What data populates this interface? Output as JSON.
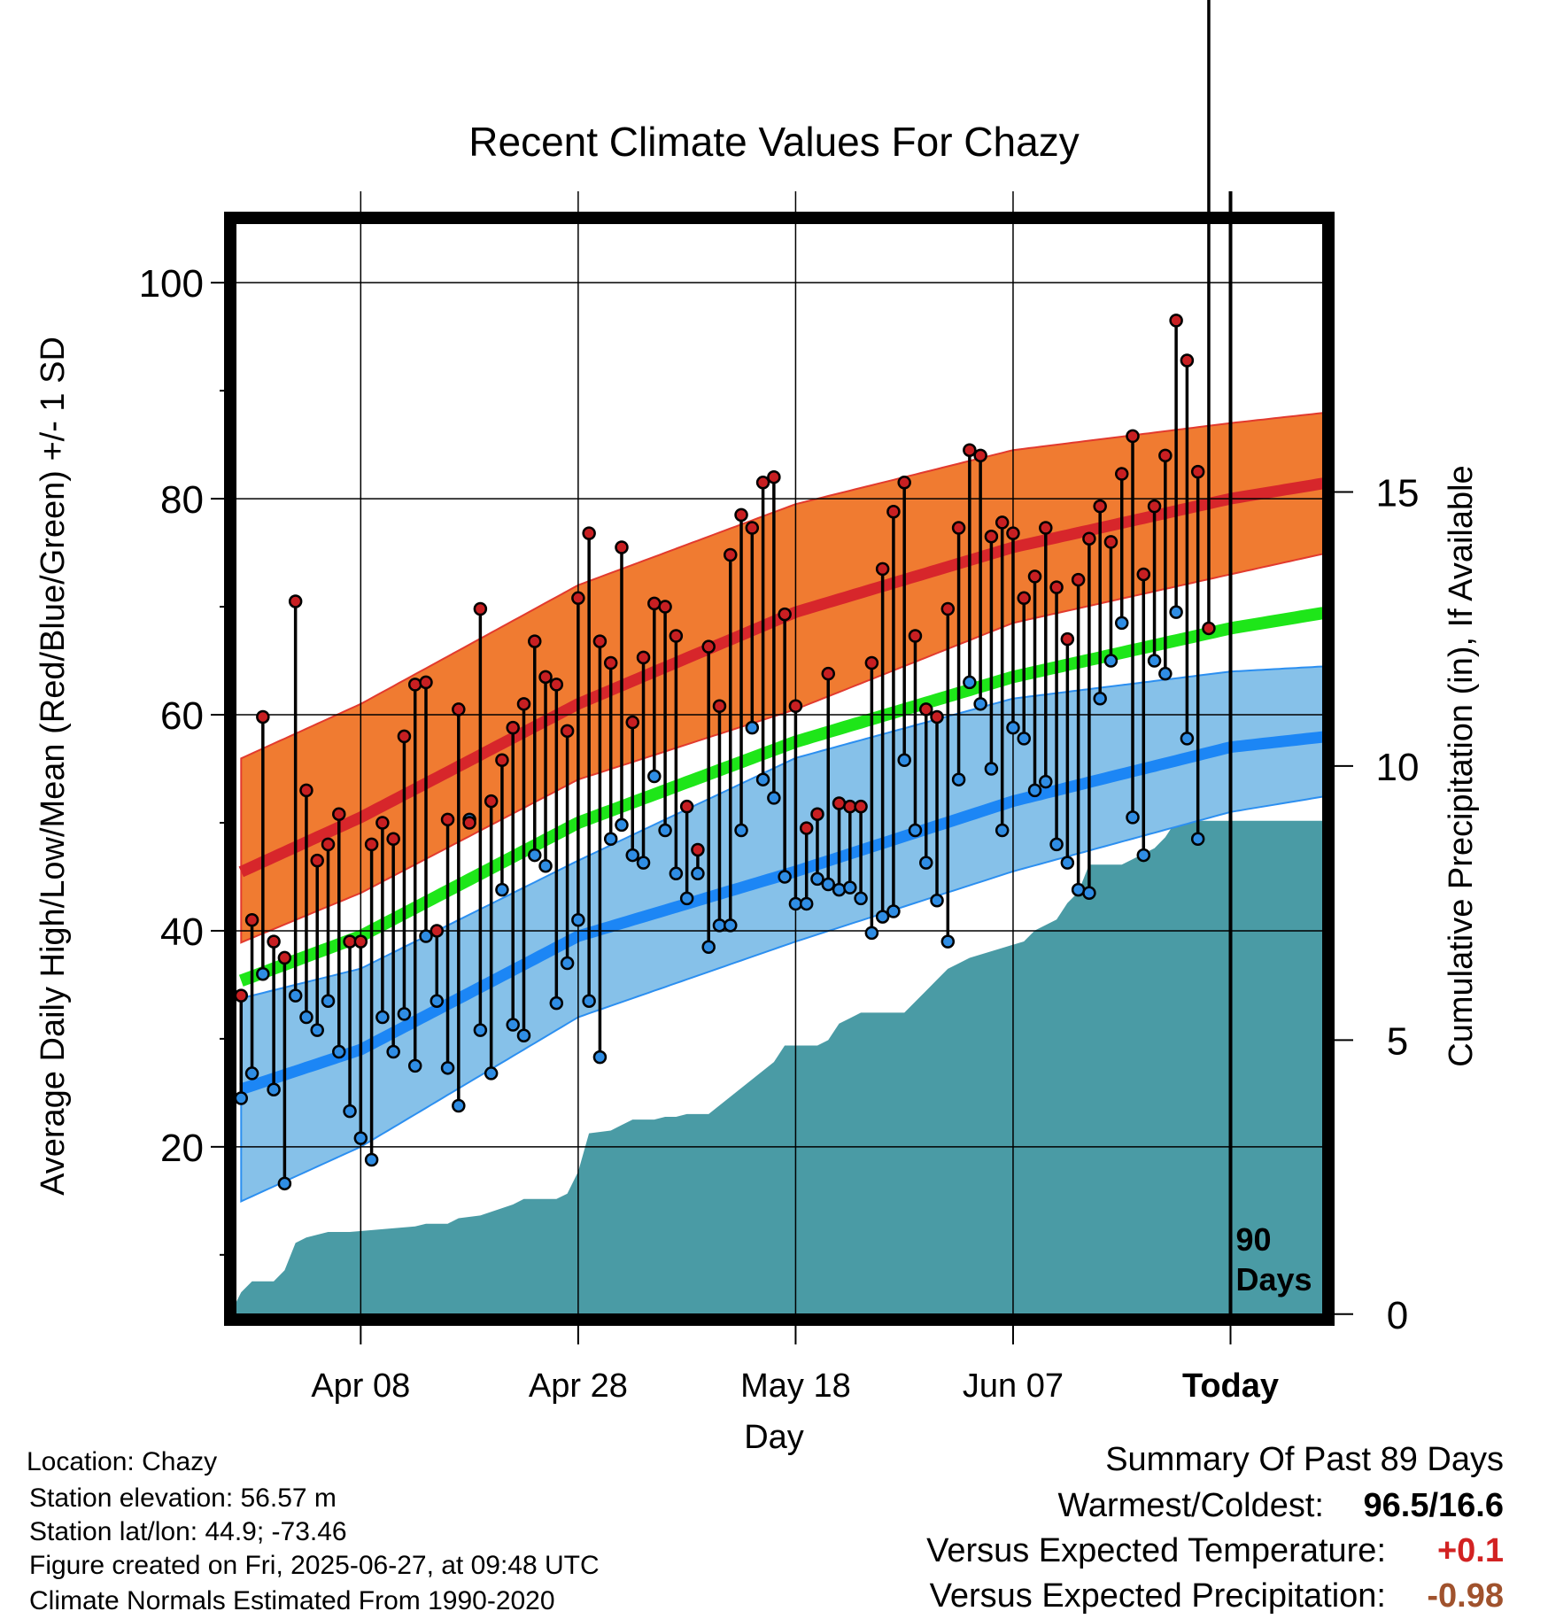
{
  "chart_data": {
    "type": "line",
    "title": "Recent Climate Values For Chazy",
    "xlabel": "Day",
    "ylabel": "Average Daily High/Low/Mean (Red/Blue/Green) +/- 1 SD",
    "y2label": "Cumulative Precipitation (in), If Available",
    "ylim": [
      4,
      106
    ],
    "y2lim": [
      -0.1,
      20
    ],
    "x_range_days": [
      -92,
      9
    ],
    "yticks": [
      20,
      40,
      60,
      80,
      100
    ],
    "y2ticks": [
      0,
      5,
      10,
      15
    ],
    "xtick_labels": [
      {
        "day": -80,
        "label": "Apr 08"
      },
      {
        "day": -60,
        "label": "Apr 28"
      },
      {
        "day": -40,
        "label": "May 18"
      },
      {
        "day": -20,
        "label": "Jun 07"
      },
      {
        "day": 0,
        "label": "Today"
      }
    ],
    "today_marker": {
      "day": 0,
      "label_line1": "90",
      "label_line2": "Days"
    },
    "grid": true,
    "normals": {
      "days": [
        -92,
        -80,
        -60,
        -40,
        -20,
        0,
        9
      ],
      "high_mean": [
        45,
        50.5,
        61,
        69.5,
        75.5,
        80,
        81.5
      ],
      "high_upper": [
        55.5,
        61,
        72,
        79.5,
        84.5,
        87,
        88
      ],
      "high_lower": [
        38.5,
        43.5,
        54,
        60.5,
        68.5,
        73,
        75
      ],
      "avg_mean": [
        35,
        39.5,
        50,
        57.5,
        63.5,
        68,
        69.5
      ],
      "low_mean": [
        25,
        29,
        39.5,
        45.5,
        52,
        57,
        58
      ],
      "low_upper": [
        33.5,
        36.5,
        46.5,
        56,
        61.5,
        64,
        64.5
      ],
      "low_lower": [
        14.5,
        20,
        32,
        39,
        45.5,
        51,
        52.5
      ]
    },
    "daily_high": [
      34,
      41,
      59.8,
      39,
      37.5,
      70.5,
      53,
      46.5,
      48,
      50.8,
      39,
      39,
      48,
      50,
      48.5,
      58,
      62.8,
      63,
      40,
      50.3,
      60.5,
      50,
      69.8,
      52,
      55.8,
      58.8,
      61,
      66.8,
      63.5,
      62.8,
      58.5,
      70.8,
      76.8,
      66.8,
      64.8,
      75.5,
      59.3,
      65.3,
      70.3,
      70,
      67.3,
      51.5,
      47.5,
      66.3,
      60.8,
      74.8,
      78.5,
      77.3,
      81.5,
      82,
      69.3,
      60.8,
      49.5,
      50.8,
      63.8,
      51.8,
      51.5,
      51.5,
      64.8,
      73.5,
      78.8,
      81.5,
      67.3,
      60.5,
      59.8,
      69.8,
      77.3,
      84.5,
      84,
      76.5,
      77.8,
      76.8,
      70.8,
      72.8,
      77.3,
      71.8,
      67,
      72.5,
      76.3,
      79.3,
      76,
      82.3,
      85.8,
      73,
      79.3,
      84,
      96.5,
      92.8,
      82.5,
      68
    ],
    "daily_low": [
      24.5,
      26.8,
      36,
      25.3,
      16.6,
      34,
      32,
      30.8,
      33.5,
      28.8,
      23.3,
      20.8,
      18.8,
      32,
      28.8,
      32.3,
      27.5,
      39.5,
      33.5,
      27.3,
      23.8,
      50.3,
      30.8,
      26.8,
      43.8,
      31.3,
      30.3,
      47,
      46,
      33.3,
      37,
      41,
      33.5,
      28.3,
      48.5,
      49.8,
      47,
      46.3,
      54.3,
      49.3,
      45.3,
      43,
      45.3,
      38.5,
      40.5,
      40.5,
      49.3,
      58.8,
      54,
      52.3,
      45,
      42.5,
      42.5,
      44.8,
      44.3,
      43.8,
      44,
      43,
      39.8,
      41.3,
      41.8,
      55.8,
      49.3,
      46.3,
      42.8,
      39,
      54,
      63,
      61,
      55,
      49.3,
      58.8,
      57.8,
      53,
      53.8,
      48,
      46.3,
      43.8,
      43.5,
      61.5,
      65,
      68.5,
      50.5,
      47,
      65,
      63.8,
      69.5,
      57.8,
      48.5
    ],
    "cumulative_precip_days": [
      -92,
      -91,
      -90,
      -88,
      -87,
      -86,
      -85,
      -84,
      -83,
      -82,
      -81,
      -75,
      -74,
      -72,
      -71,
      -69,
      -66,
      -65,
      -62,
      -61,
      -60,
      -59,
      -57,
      -56,
      -55,
      -53,
      -52,
      -51,
      -50,
      -48,
      -42,
      -41,
      -40,
      -38,
      -37,
      -36,
      -35,
      -34,
      -32,
      -30,
      -29,
      -28,
      -27,
      -26,
      -25,
      -24,
      -19,
      -18,
      -16,
      -15,
      -14,
      -13,
      -12,
      -11,
      -10,
      -9,
      -8,
      -7,
      -6,
      -5,
      9
    ],
    "cumulative_precip": [
      0,
      0.4,
      0.6,
      0.6,
      0.8,
      1.3,
      1.4,
      1.45,
      1.5,
      1.5,
      1.5,
      1.6,
      1.65,
      1.65,
      1.75,
      1.8,
      2,
      2.1,
      2.1,
      2.2,
      2.6,
      3.3,
      3.35,
      3.45,
      3.55,
      3.55,
      3.6,
      3.6,
      3.65,
      3.65,
      4.6,
      4.9,
      4.9,
      4.9,
      5.0,
      5.3,
      5.4,
      5.5,
      5.5,
      5.5,
      5.7,
      5.9,
      6.1,
      6.3,
      6.4,
      6.5,
      6.8,
      7.0,
      7.2,
      7.5,
      7.7,
      8.2,
      8.2,
      8.2,
      8.2,
      8.3,
      8.4,
      8.5,
      8.7,
      9.0,
      9.0
    ],
    "colors": {
      "high_band": "#f07b31",
      "high_line": "#d7262b",
      "avg_line": "#1ee619",
      "low_band": "#86c1e9",
      "low_line": "#1c86f5",
      "precip": "#4a9ba5",
      "high_dot": "#c81f22",
      "low_dot": "#2f8de4",
      "warm_value": "#d22222",
      "precip_value": "#a0522d"
    }
  },
  "station": {
    "location": "Location: Chazy",
    "elevation": "Station elevation: 56.57 m",
    "latlon": "Station lat/lon: 44.9; -73.46",
    "created": "Figure created on Fri, 2025-06-27, at 09:48 UTC",
    "normals_note": "Climate Normals Estimated From 1990-2020"
  },
  "summary": {
    "heading": "Summary Of Past 89 Days",
    "warm_cold_label": "Warmest/Coldest:",
    "warm_cold_value": "96.5/16.6",
    "temp_label": "Versus Expected Temperature:",
    "temp_value": "+0.1",
    "precip_label": "Versus Expected Precipitation:",
    "precip_value": "-0.98"
  }
}
